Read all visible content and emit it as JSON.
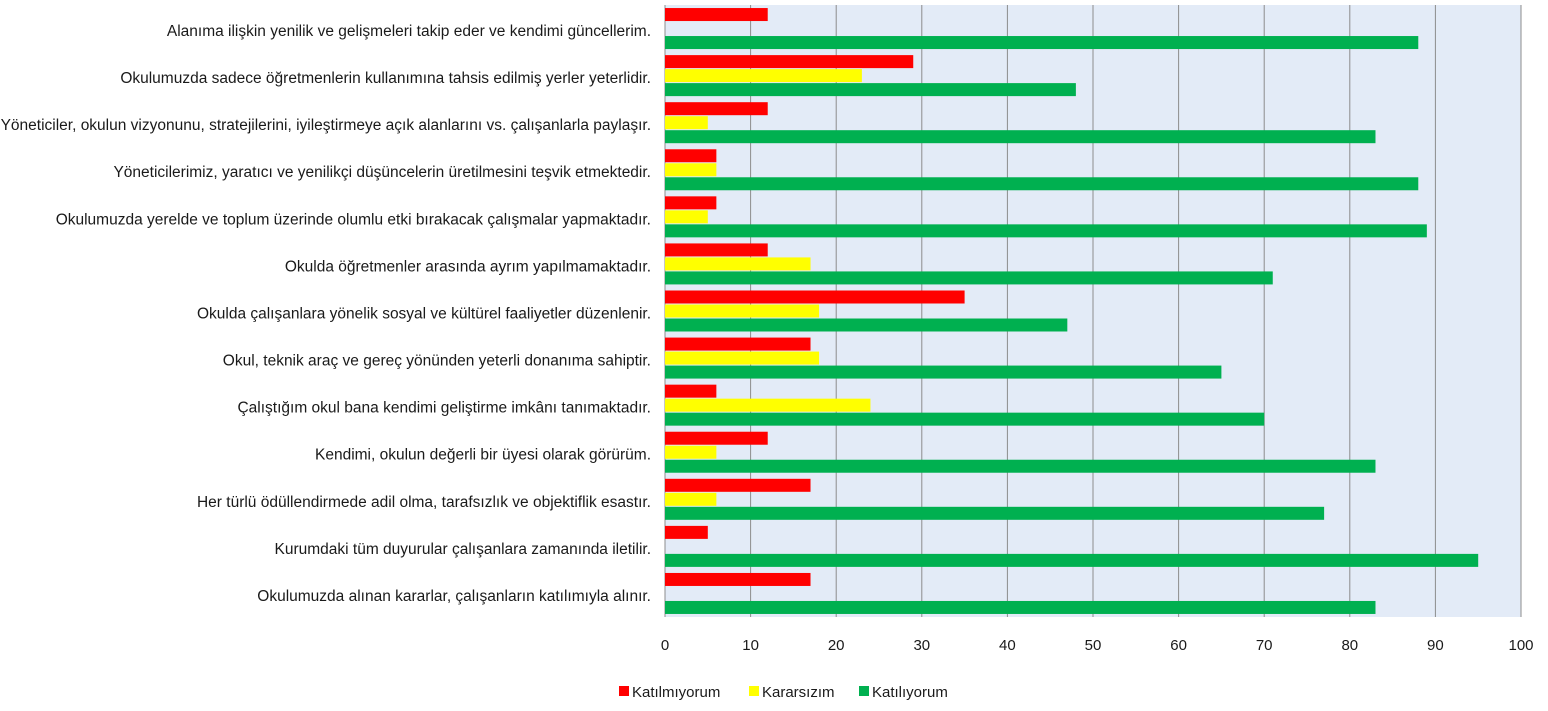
{
  "chart_data": {
    "type": "bar",
    "orientation": "horizontal",
    "categories": [
      "Alanıma ilişkin yenilik ve gelişmeleri takip eder ve kendimi güncellerim.",
      "Okulumuzda sadece öğretmenlerin kullanımına tahsis edilmiş yerler yeterlidir.",
      "Yöneticiler, okulun vizyonunu, stratejilerini, iyileştirmeye açık alanlarını vs. çalışanlarla paylaşır.",
      "Yöneticilerimiz, yaratıcı ve yenilikçi düşüncelerin üretilmesini teşvik etmektedir.",
      "Okulumuzda yerelde ve toplum üzerinde olumlu etki bırakacak çalışmalar yapmaktadır.",
      "Okulda öğretmenler arasında ayrım yapılmamaktadır.",
      "Okulda çalışanlara yönelik sosyal ve kültürel faaliyetler düzenlenir.",
      "Okul, teknik araç ve gereç yönünden yeterli donanıma sahiptir.",
      "Çalıştığım okul bana kendimi geliştirme imkânı tanımaktadır.",
      "Kendimi, okulun değerli bir üyesi olarak görürüm.",
      "Her türlü ödüllendirmede adil olma, tarafsızlık ve objektiflik esastır.",
      "Kurumdaki tüm duyurular çalışanlara zamanında iletilir.",
      "Okulumuzda alınan kararlar, çalışanların katılımıyla alınır."
    ],
    "series": [
      {
        "name": "Katılmıyorum",
        "color": "#ff0000",
        "values": [
          12,
          29,
          12,
          6,
          6,
          12,
          35,
          17,
          6,
          12,
          17,
          5,
          17
        ]
      },
      {
        "name": "Kararsızım",
        "color": "#ffff00",
        "values": [
          0,
          23,
          5,
          6,
          5,
          17,
          18,
          18,
          24,
          6,
          6,
          0,
          0
        ]
      },
      {
        "name": "Katılıyorum",
        "color": "#00b050",
        "values": [
          88,
          48,
          83,
          88,
          89,
          71,
          47,
          65,
          70,
          83,
          77,
          95,
          83
        ]
      }
    ],
    "xlim": [
      0,
      100
    ],
    "x_ticks": [
      "0",
      "10",
      "20",
      "30",
      "40",
      "50",
      "60",
      "70",
      "80",
      "90",
      "100"
    ],
    "grid": true,
    "legend": "bottom-center",
    "plot_background": "#e3ebf7",
    "title": "",
    "xlabel": "",
    "ylabel": ""
  }
}
